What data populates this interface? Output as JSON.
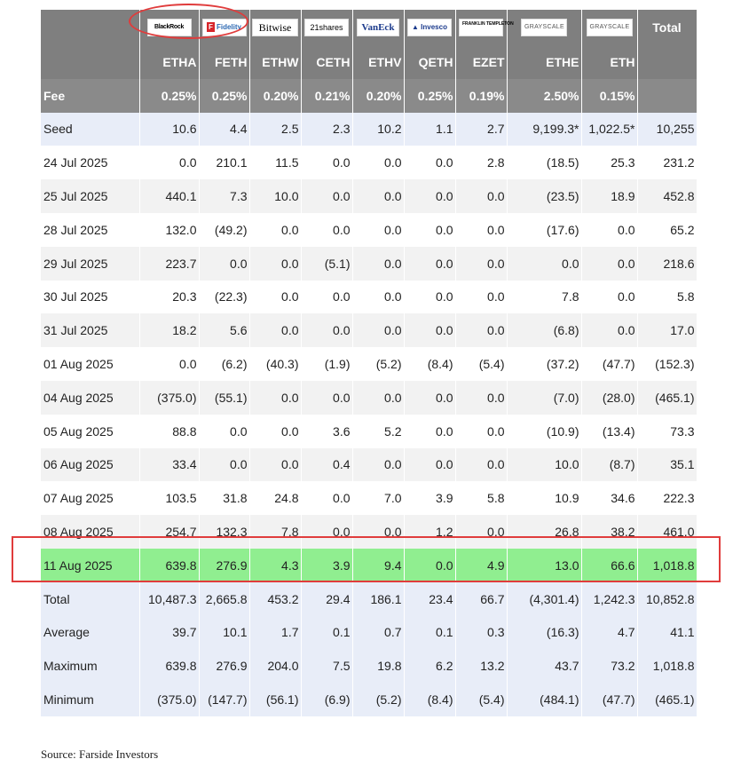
{
  "table": {
    "issuers": [
      {
        "name": "BlackRock",
        "icon": "blackrock-logo"
      },
      {
        "name": "Fidelity",
        "icon": "fidelity-logo"
      },
      {
        "name": "Bitwise",
        "icon": "bitwise-logo"
      },
      {
        "name": "21shares",
        "icon": "21shares-logo"
      },
      {
        "name": "VanEck",
        "icon": "vaneck-logo"
      },
      {
        "name": "Invesco",
        "icon": "invesco-logo"
      },
      {
        "name": "FRANKLIN TEMPLETON",
        "icon": "franklin-templeton-logo"
      },
      {
        "name": "GRAYSCALE",
        "icon": "grayscale-logo"
      },
      {
        "name": "GRAYSCALE",
        "icon": "grayscale-logo"
      }
    ],
    "total_header": "Total",
    "tickers": [
      "ETHA",
      "FETH",
      "ETHW",
      "CETH",
      "ETHV",
      "QETH",
      "EZET",
      "ETHE",
      "ETH"
    ],
    "fee_label": "Fee",
    "fees": [
      "0.25%",
      "0.25%",
      "0.20%",
      "0.21%",
      "0.20%",
      "0.25%",
      "0.19%",
      "2.50%",
      "0.15%"
    ],
    "rows": [
      {
        "date": "Seed",
        "values": [
          "10.6",
          "4.4",
          "2.5",
          "2.3",
          "10.2",
          "1.1",
          "2.7",
          "9,199.3*",
          "1,022.5*"
        ],
        "total": "10,255"
      },
      {
        "date": "24 Jul 2025",
        "values": [
          "0.0",
          "210.1",
          "11.5",
          "0.0",
          "0.0",
          "0.0",
          "2.8",
          "(18.5)",
          "25.3"
        ],
        "total": "231.2"
      },
      {
        "date": "25 Jul 2025",
        "values": [
          "440.1",
          "7.3",
          "10.0",
          "0.0",
          "0.0",
          "0.0",
          "0.0",
          "(23.5)",
          "18.9"
        ],
        "total": "452.8"
      },
      {
        "date": "28 Jul 2025",
        "values": [
          "132.0",
          "(49.2)",
          "0.0",
          "0.0",
          "0.0",
          "0.0",
          "0.0",
          "(17.6)",
          "0.0"
        ],
        "total": "65.2"
      },
      {
        "date": "29 Jul 2025",
        "values": [
          "223.7",
          "0.0",
          "0.0",
          "(5.1)",
          "0.0",
          "0.0",
          "0.0",
          "0.0",
          "0.0"
        ],
        "total": "218.6"
      },
      {
        "date": "30 Jul 2025",
        "values": [
          "20.3",
          "(22.3)",
          "0.0",
          "0.0",
          "0.0",
          "0.0",
          "0.0",
          "7.8",
          "0.0"
        ],
        "total": "5.8"
      },
      {
        "date": "31 Jul 2025",
        "values": [
          "18.2",
          "5.6",
          "0.0",
          "0.0",
          "0.0",
          "0.0",
          "0.0",
          "(6.8)",
          "0.0"
        ],
        "total": "17.0"
      },
      {
        "date": "01 Aug 2025",
        "values": [
          "0.0",
          "(6.2)",
          "(40.3)",
          "(1.9)",
          "(5.2)",
          "(8.4)",
          "(5.4)",
          "(37.2)",
          "(47.7)"
        ],
        "total": "(152.3)"
      },
      {
        "date": "04 Aug 2025",
        "values": [
          "(375.0)",
          "(55.1)",
          "0.0",
          "0.0",
          "0.0",
          "0.0",
          "0.0",
          "(7.0)",
          "(28.0)"
        ],
        "total": "(465.1)"
      },
      {
        "date": "05 Aug 2025",
        "values": [
          "88.8",
          "0.0",
          "0.0",
          "3.6",
          "5.2",
          "0.0",
          "0.0",
          "(10.9)",
          "(13.4)"
        ],
        "total": "73.3"
      },
      {
        "date": "06 Aug 2025",
        "values": [
          "33.4",
          "0.0",
          "0.0",
          "0.4",
          "0.0",
          "0.0",
          "0.0",
          "10.0",
          "(8.7)"
        ],
        "total": "35.1"
      },
      {
        "date": "07 Aug 2025",
        "values": [
          "103.5",
          "31.8",
          "24.8",
          "0.0",
          "7.0",
          "3.9",
          "5.8",
          "10.9",
          "34.6"
        ],
        "total": "222.3"
      },
      {
        "date": "08 Aug 2025",
        "values": [
          "254.7",
          "132.3",
          "7.8",
          "0.0",
          "0.0",
          "1.2",
          "0.0",
          "26.8",
          "38.2"
        ],
        "total": "461.0"
      },
      {
        "date": "11 Aug 2025",
        "values": [
          "639.8",
          "276.9",
          "4.3",
          "3.9",
          "9.4",
          "0.0",
          "4.9",
          "13.0",
          "66.6"
        ],
        "total": "1,018.8"
      }
    ],
    "summary": [
      {
        "label": "Total",
        "values": [
          "10,487.3",
          "2,665.8",
          "453.2",
          "29.4",
          "186.1",
          "23.4",
          "66.7",
          "(4,301.4)",
          "1,242.3"
        ],
        "total": "10,852.8"
      },
      {
        "label": "Average",
        "values": [
          "39.7",
          "10.1",
          "1.7",
          "0.1",
          "0.7",
          "0.1",
          "0.3",
          "(16.3)",
          "4.7"
        ],
        "total": "41.1"
      },
      {
        "label": "Maximum",
        "values": [
          "639.8",
          "276.9",
          "204.0",
          "7.5",
          "19.8",
          "6.2",
          "13.2",
          "43.7",
          "73.2"
        ],
        "total": "1,018.8"
      },
      {
        "label": "Minimum",
        "values": [
          "(375.0)",
          "(147.7)",
          "(56.1)",
          "(6.9)",
          "(5.2)",
          "(8.4)",
          "(5.4)",
          "(484.1)",
          "(47.7)"
        ],
        "total": "(465.1)"
      }
    ]
  },
  "source": "Source: Farside Investors",
  "colors": {
    "header_gray": "#7f7f7f",
    "highlight_green": "#90ee90",
    "negative_red": "#e8262a",
    "annotation_red": "#e03c3c"
  }
}
